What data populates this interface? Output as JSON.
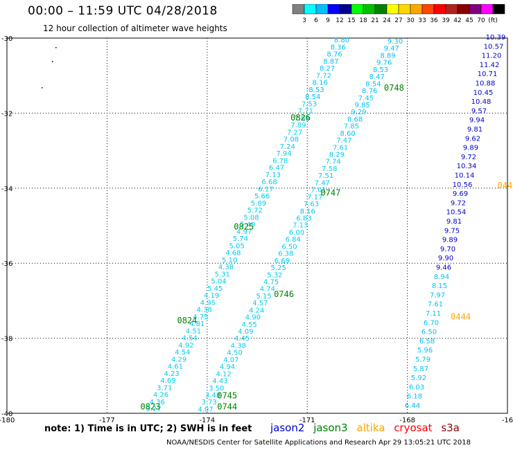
{
  "header": {
    "title": "00:00 – 11:59 UTC 04/28/2018",
    "subtitle": "12 hour collection of altimeter wave heights"
  },
  "legend": {
    "colors": [
      "#808080",
      "#00ffff",
      "#00bfff",
      "#0000ff",
      "#00008b",
      "#00ff00",
      "#00c000",
      "#008000",
      "#ffff00",
      "#ffd700",
      "#ffa500",
      "#ff4500",
      "#ff0000",
      "#b22222",
      "#8b0000",
      "#800080",
      "#ff00ff",
      "#000000"
    ],
    "labels": [
      "3",
      "6",
      "9",
      "12",
      "15",
      "18",
      "21",
      "24",
      "27",
      "30",
      "33",
      "36",
      "39",
      "42",
      "45",
      "70",
      "(ft)"
    ]
  },
  "axes": {
    "x_ticks": [
      "-180",
      "-177",
      "-174",
      "-171",
      "-168",
      "-16"
    ],
    "y_ticks": [
      "-30",
      "-32",
      "-34",
      "-36",
      "-38",
      "-40"
    ]
  },
  "footer": {
    "note": "note: 1) Time is in UTC; 2) SWH is in feet",
    "credit": "NOAA/NESDIS Center for Satellite Applications and Research   Apr 29 13:05:21 UTC 2018"
  },
  "satellites": [
    {
      "name": "jason2",
      "color": "#0000cc"
    },
    {
      "name": "jason3",
      "color": "#008000"
    },
    {
      "name": "altika",
      "color": "#ffa500"
    },
    {
      "name": "cryosat",
      "color": "#ff0000"
    },
    {
      "name": "s3a",
      "color": "#8b0000"
    }
  ],
  "tracks": [
    {
      "id": "track-0826",
      "color": "#00bfff",
      "values": [
        "8.80",
        "8.36",
        "8.76",
        "8.87",
        "8.27",
        "7.72",
        "8.16",
        "8.53",
        "8.54",
        "7.53",
        "7.71",
        "7.69",
        "7.89",
        "7.27",
        "7.08",
        "7.24",
        "7.94",
        "6.78",
        "6.47",
        "7.13",
        "6.68",
        "6.17",
        "5.66",
        "5.89",
        "5.72",
        "5.08",
        "5.49",
        "4.97",
        "5.74",
        "5.05",
        "4.68",
        "5.10",
        "4.38",
        "5.31",
        "5.04",
        "5.45",
        "4.19",
        "4.95",
        "4.38",
        "4.75",
        "4.81",
        "4.51",
        "4.54",
        "4.92",
        "4.54",
        "4.29",
        "4.61",
        "4.23",
        "4.69",
        "3.71",
        "4.26",
        "4.36",
        "3.27",
        "3.61"
      ],
      "time_labels": [
        {
          "text": "0826",
          "lon": -171.5,
          "lat": -32.2
        },
        {
          "text": "0825",
          "lon": -173.2,
          "lat": -35.1
        },
        {
          "text": "0824",
          "lon": -174.9,
          "lat": -37.6
        },
        {
          "text": "0823",
          "lon": -176.0,
          "lat": -39.9
        }
      ]
    },
    {
      "id": "track-0748",
      "color": "#00bfff",
      "values": [
        "9.30",
        "9.47",
        "8.89",
        "9.76",
        "8.53",
        "8.47",
        "8.54",
        "8.76",
        "7.45",
        "9.85",
        "9.29",
        "8.68",
        "7.85",
        "8.60",
        "7.47",
        "7.61",
        "8.29",
        "7.74",
        "7.58",
        "7.51",
        "7.47",
        "7.01",
        "7.17",
        "7.63",
        "8.16",
        "6.83",
        "7.13",
        "6.00",
        "6.84",
        "6.50",
        "6.38",
        "6.69",
        "5.25",
        "5.32",
        "4.75",
        "4.74",
        "5.15",
        "4.57",
        "4.24",
        "4.90",
        "4.55",
        "4.09",
        "4.45",
        "4.38",
        "4.50",
        "4.07",
        "4.94",
        "4.12",
        "4.43",
        "3.50",
        "3.48",
        "3.73",
        "4.07",
        "4.08"
      ],
      "time_labels": [
        {
          "text": "0748",
          "lon": -168.7,
          "lat": -31.4
        },
        {
          "text": "0747",
          "lon": -170.6,
          "lat": -34.2
        },
        {
          "text": "0746",
          "lon": -172.0,
          "lat": -36.9
        },
        {
          "text": "0745",
          "lon": -173.7,
          "lat": -39.6
        },
        {
          "text": "0744",
          "lon": -173.7,
          "lat": -39.9
        }
      ]
    },
    {
      "id": "track-0443",
      "color": "#0000cc",
      "values": [
        "10.39",
        "10.57",
        "11.20",
        "11.42",
        "10.71",
        "10.88",
        "10.45",
        "10.48",
        "9.57",
        "9.94",
        "9.81",
        "9.62",
        "9.89",
        "9.72",
        "10.34",
        "10.14",
        "10.56",
        "9.69",
        "9.72",
        "10.54",
        "9.81",
        "9.75",
        "9.89",
        "9.70",
        "9.90",
        "9.46",
        "8.94",
        "8.15",
        "7.97",
        "7.61",
        "7.11",
        "6.70",
        "6.50",
        "6.58",
        "5.96",
        "5.79",
        "5.87",
        "5.92",
        "6.03",
        "6.18",
        "6.44"
      ],
      "time_labels": [
        {
          "text": "0443",
          "lon": -165.3,
          "lat": -34.0
        },
        {
          "text": "0444",
          "lon": -166.7,
          "lat": -37.5
        }
      ]
    }
  ],
  "edge_marks": [
    {
      "text": "0",
      "lon": -164.0,
      "lat": -30.3
    }
  ]
}
